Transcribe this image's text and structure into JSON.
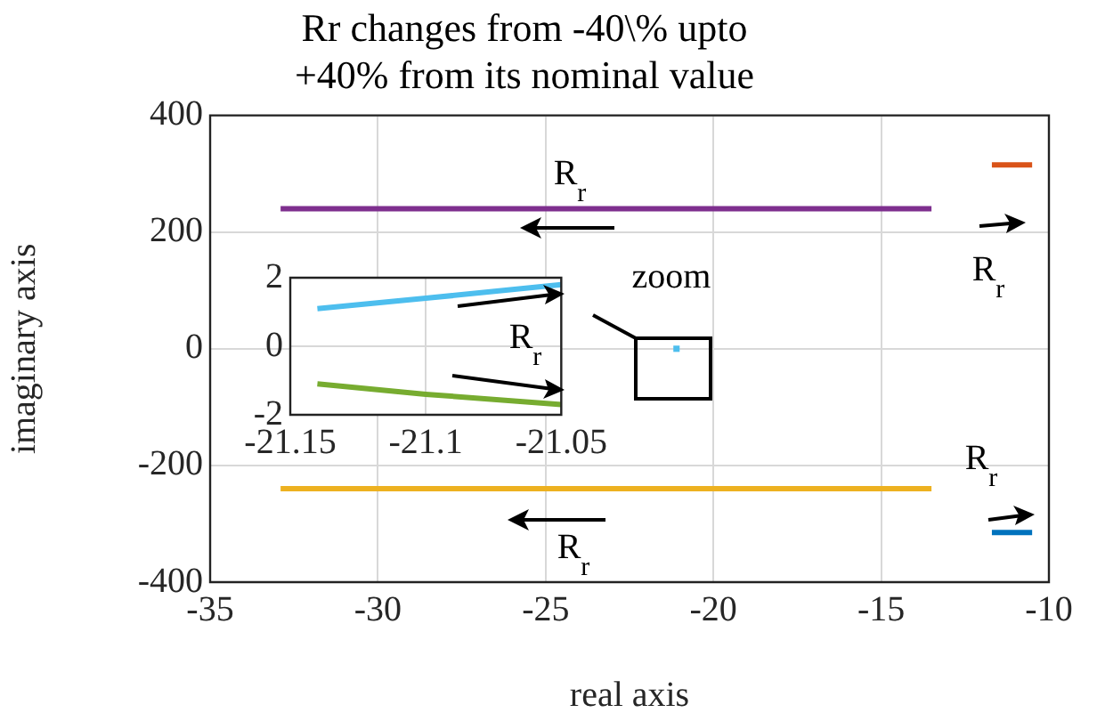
{
  "chart_data": [
    {
      "type": "line",
      "title": [
        "Rr changes from -40\\% upto",
        "+40% from its nominal value"
      ],
      "xlabel": "real axis",
      "ylabel": "imaginary axis",
      "xlim": [
        -35,
        -10
      ],
      "xticks": [
        -35,
        -30,
        -25,
        -20,
        -15,
        -10
      ],
      "ylim": [
        -400,
        400
      ],
      "yticks": [
        -400,
        -200,
        0,
        200,
        400
      ],
      "grid": true,
      "marker": "none",
      "series": [
        {
          "color": "#7e2f8e",
          "x": [
            -32.9,
            -13.5
          ],
          "values": [
            240,
            240
          ]
        },
        {
          "color": "#edb120",
          "x": [
            -32.9,
            -13.5
          ],
          "values": [
            -240,
            -240
          ]
        },
        {
          "color": "#d95319",
          "x": [
            -11.7,
            -10.5
          ],
          "values": [
            315,
            315
          ]
        },
        {
          "color": "#0072bd",
          "x": [
            -11.7,
            -10.5
          ],
          "values": [
            -315,
            -315
          ]
        },
        {
          "type": "scatter",
          "marker": "square",
          "color": "#4dbeee",
          "x": [
            -21.1
          ],
          "values": [
            0
          ]
        }
      ],
      "annotations": [
        "R$_{r}$",
        "R$_{r}$",
        "R$_{r}$",
        "R$_{r}$",
        "zoom"
      ]
    },
    {
      "type": "line",
      "xlim": [
        -21.15,
        -21.05
      ],
      "xticks": [
        -21.15,
        -21.1,
        -21.05
      ],
      "ylim": [
        -2,
        2
      ],
      "yticks": [
        -2,
        0,
        2
      ],
      "grid": true,
      "marker": "none",
      "series": [
        {
          "color": "#4dbeee",
          "x": [
            -21.14,
            -21.1,
            -21.05
          ],
          "values": [
            1.1,
            1.4,
            1.8
          ]
        },
        {
          "color": "#77ac30",
          "x": [
            -21.14,
            -21.1,
            -21.05
          ],
          "values": [
            -1.1,
            -1.4,
            -1.7
          ]
        }
      ],
      "annotations": [
        "R$_{r}$"
      ]
    }
  ]
}
